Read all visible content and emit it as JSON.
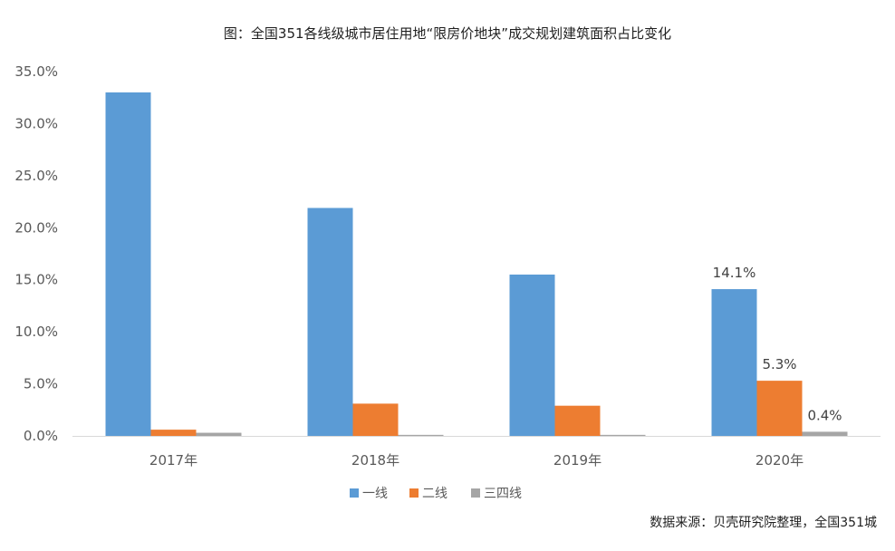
{
  "chart_data": {
    "type": "bar",
    "title": "图：全国351各线级城市居住用地“限房价地块”成交规划建筑面积占比变化",
    "categories": [
      "2017年",
      "2018年",
      "2019年",
      "2020年"
    ],
    "series": [
      {
        "name": "一线",
        "color": "#5B9BD5",
        "values": [
          33.0,
          21.9,
          15.5,
          14.1
        ],
        "labels": [
          "",
          "",
          "",
          "14.1%"
        ]
      },
      {
        "name": "二线",
        "color": "#ED7D31",
        "values": [
          0.6,
          3.1,
          2.9,
          5.3
        ],
        "labels": [
          "",
          "",
          "",
          "5.3%"
        ]
      },
      {
        "name": "三四线",
        "color": "#A5A5A5",
        "values": [
          0.3,
          0.1,
          0.1,
          0.4
        ],
        "labels": [
          "",
          "",
          "",
          "0.4%"
        ]
      }
    ],
    "yticks": [
      "0.0%",
      "5.0%",
      "10.0%",
      "15.0%",
      "20.0%",
      "25.0%",
      "30.0%",
      "35.0%"
    ],
    "ylim": [
      0,
      35
    ],
    "grid": false,
    "legend": "bottom-center",
    "source": "数据来源：贝壳研究院整理，全国351城"
  }
}
